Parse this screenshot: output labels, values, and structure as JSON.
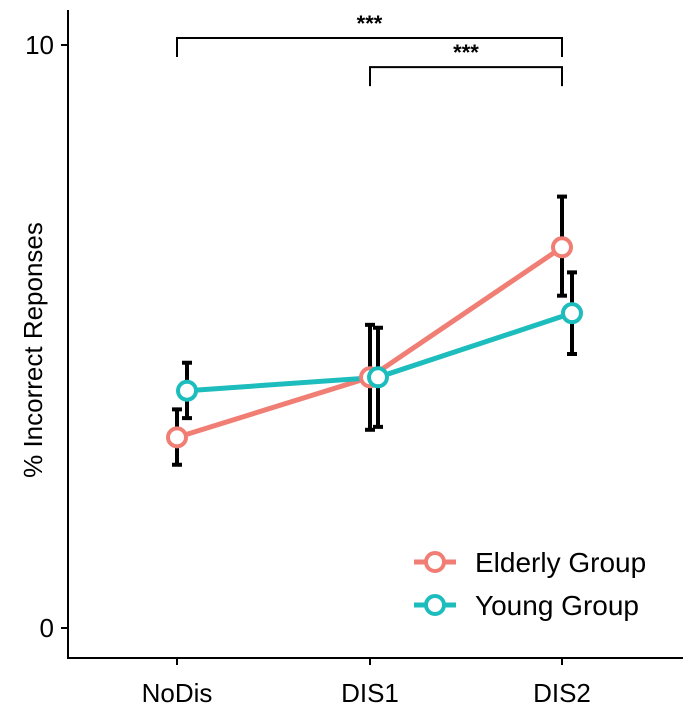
{
  "chart_data": {
    "type": "line",
    "title": "",
    "xlabel": "",
    "ylabel": "% Incorrect Reponses",
    "categories": [
      "NoDis",
      "DIS1",
      "DIS2"
    ],
    "ylim": [
      0,
      10
    ],
    "yticks": [
      {
        "value": 0,
        "label": "0"
      },
      {
        "value": 10,
        "label": "10"
      }
    ],
    "grid": false,
    "legend_position": "bottom-right",
    "series": [
      {
        "name": "Elderly Group",
        "color": "#F07E74",
        "values": [
          3.27,
          4.3,
          6.53
        ],
        "errors": [
          {
            "lower": 2.8,
            "upper": 3.75
          },
          {
            "lower": 3.4,
            "upper": 5.2
          },
          {
            "lower": 5.7,
            "upper": 7.4
          }
        ]
      },
      {
        "name": "Young Group",
        "color": "#1DBDBD",
        "values": [
          4.07,
          4.3,
          5.4
        ],
        "errors": [
          {
            "lower": 3.6,
            "upper": 4.55
          },
          {
            "lower": 3.45,
            "upper": 5.15
          },
          {
            "lower": 4.7,
            "upper": 6.1
          }
        ]
      }
    ],
    "annotations": [
      {
        "from": "NoDis",
        "to": "DIS2",
        "label": "***",
        "level": 10.0
      },
      {
        "from": "DIS1",
        "to": "DIS2",
        "label": "***",
        "level": 9.5
      }
    ]
  }
}
